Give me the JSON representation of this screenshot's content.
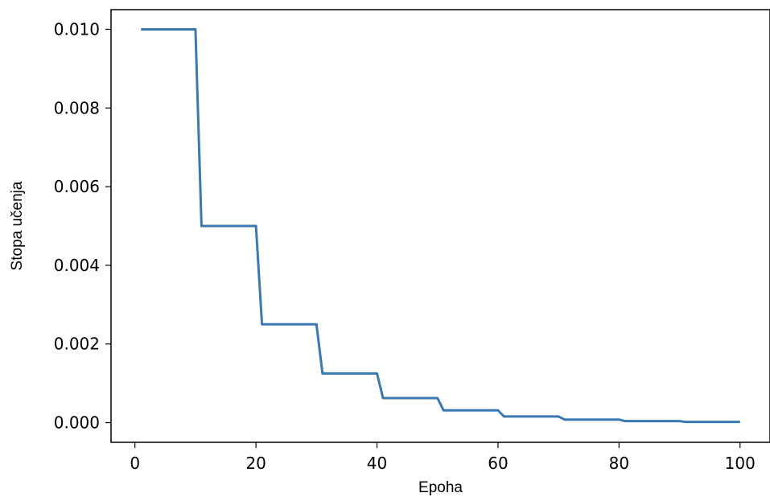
{
  "chart_data": {
    "type": "line",
    "title": "",
    "xlabel": "Epoha",
    "ylabel": "Stopa učenja",
    "xlim": [
      -3.95,
      104.95
    ],
    "ylim": [
      -0.0005,
      0.0105
    ],
    "xticks": [
      0,
      20,
      40,
      60,
      80,
      100
    ],
    "xtick_labels": [
      "0",
      "20",
      "40",
      "60",
      "80",
      "100"
    ],
    "yticks": [
      0.0,
      0.002,
      0.004,
      0.006,
      0.008,
      0.01
    ],
    "ytick_labels": [
      "0.000",
      "0.002",
      "0.004",
      "0.006",
      "0.008",
      "0.010"
    ],
    "grid": false,
    "line_color": "#3a78b4",
    "series": [
      {
        "x": [
          1,
          2,
          3,
          4,
          5,
          6,
          7,
          8,
          9,
          10,
          11,
          12,
          13,
          14,
          15,
          16,
          17,
          18,
          19,
          20,
          21,
          22,
          23,
          24,
          25,
          26,
          27,
          28,
          29,
          30,
          31,
          32,
          33,
          34,
          35,
          36,
          37,
          38,
          39,
          40,
          41,
          42,
          43,
          44,
          45,
          46,
          47,
          48,
          49,
          50,
          51,
          52,
          53,
          54,
          55,
          56,
          57,
          58,
          59,
          60,
          61,
          62,
          63,
          64,
          65,
          66,
          67,
          68,
          69,
          70,
          71,
          72,
          73,
          74,
          75,
          76,
          77,
          78,
          79,
          80,
          81,
          82,
          83,
          84,
          85,
          86,
          87,
          88,
          89,
          90,
          91,
          92,
          93,
          94,
          95,
          96,
          97,
          98,
          99,
          100
        ],
        "values": [
          0.01,
          0.01,
          0.01,
          0.01,
          0.01,
          0.01,
          0.01,
          0.01,
          0.01,
          0.01,
          0.005,
          0.005,
          0.005,
          0.005,
          0.005,
          0.005,
          0.005,
          0.005,
          0.005,
          0.005,
          0.0025,
          0.0025,
          0.0025,
          0.0025,
          0.0025,
          0.0025,
          0.0025,
          0.0025,
          0.0025,
          0.0025,
          0.00125,
          0.00125,
          0.00125,
          0.00125,
          0.00125,
          0.00125,
          0.00125,
          0.00125,
          0.00125,
          0.00125,
          0.000625,
          0.000625,
          0.000625,
          0.000625,
          0.000625,
          0.000625,
          0.000625,
          0.000625,
          0.000625,
          0.000625,
          0.0003125,
          0.0003125,
          0.0003125,
          0.0003125,
          0.0003125,
          0.0003125,
          0.0003125,
          0.0003125,
          0.0003125,
          0.0003125,
          0.00015625,
          0.00015625,
          0.00015625,
          0.00015625,
          0.00015625,
          0.00015625,
          0.00015625,
          0.00015625,
          0.00015625,
          0.00015625,
          7.8125e-05,
          7.8125e-05,
          7.8125e-05,
          7.8125e-05,
          7.8125e-05,
          7.8125e-05,
          7.8125e-05,
          7.8125e-05,
          7.8125e-05,
          7.8125e-05,
          3.90625e-05,
          3.90625e-05,
          3.90625e-05,
          3.90625e-05,
          3.90625e-05,
          3.90625e-05,
          3.90625e-05,
          3.90625e-05,
          3.90625e-05,
          3.90625e-05,
          1.953125e-05,
          1.953125e-05,
          1.953125e-05,
          1.953125e-05,
          1.953125e-05,
          1.953125e-05,
          1.953125e-05,
          1.953125e-05,
          1.953125e-05,
          1.953125e-05
        ]
      }
    ]
  }
}
